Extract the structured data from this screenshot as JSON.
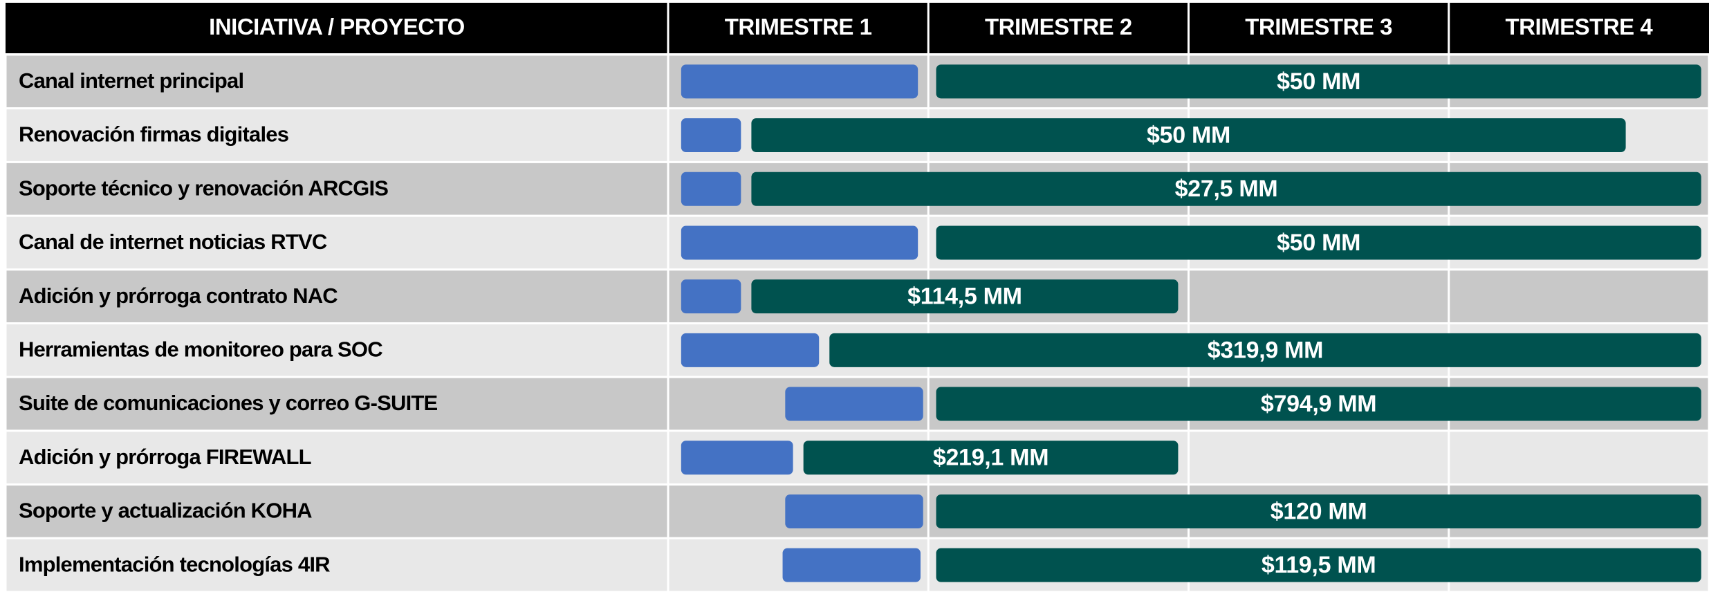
{
  "chart_data": {
    "type": "gantt",
    "columns": [
      "INICIATIVA / PROYECTO",
      "TRIMESTRE 1",
      "TRIMESTRE 2",
      "TRIMESTRE 3",
      "TRIMESTRE 4"
    ],
    "xlim": [
      0,
      4
    ],
    "prep_color": "#4472c4",
    "exec_color": "#00524f",
    "tasks": [
      {
        "label": "Canal internet principal",
        "cost": "$50 MM",
        "prep": [
          0.05,
          0.96
        ],
        "exec": [
          1.03,
          3.97
        ]
      },
      {
        "label": "Renovación firmas digitales",
        "cost": "$50 MM",
        "prep": [
          0.05,
          0.28
        ],
        "exec": [
          0.32,
          3.68
        ]
      },
      {
        "label": "Soporte técnico y renovación ARCGIS",
        "cost": "$27,5 MM",
        "prep": [
          0.05,
          0.28
        ],
        "exec": [
          0.32,
          3.97
        ]
      },
      {
        "label": "Canal de internet noticias RTVC",
        "cost": "$50 MM",
        "prep": [
          0.05,
          0.96
        ],
        "exec": [
          1.03,
          3.97
        ]
      },
      {
        "label": "Adición y prórroga contrato NAC",
        "cost": "$114,5 MM",
        "prep": [
          0.05,
          0.28
        ],
        "exec": [
          0.32,
          1.96
        ]
      },
      {
        "label": "Herramientas de monitoreo para SOC",
        "cost": "$319,9 MM",
        "prep": [
          0.05,
          0.58
        ],
        "exec": [
          0.62,
          3.97
        ]
      },
      {
        "label": "Suite de comunicaciones y correo G-SUITE",
        "cost": "$794,9 MM",
        "prep": [
          0.45,
          0.98
        ],
        "exec": [
          1.03,
          3.97
        ]
      },
      {
        "label": "Adición y prórroga FIREWALL",
        "cost": "$219,1 MM",
        "prep": [
          0.05,
          0.48
        ],
        "exec": [
          0.52,
          1.96
        ]
      },
      {
        "label": "Soporte y actualización KOHA",
        "cost": "$120 MM",
        "prep": [
          0.45,
          0.98
        ],
        "exec": [
          1.03,
          3.97
        ]
      },
      {
        "label": "Implementación tecnologías 4IR",
        "cost": "$119,5 MM",
        "prep": [
          0.44,
          0.97
        ],
        "exec": [
          1.03,
          3.97
        ]
      }
    ]
  }
}
